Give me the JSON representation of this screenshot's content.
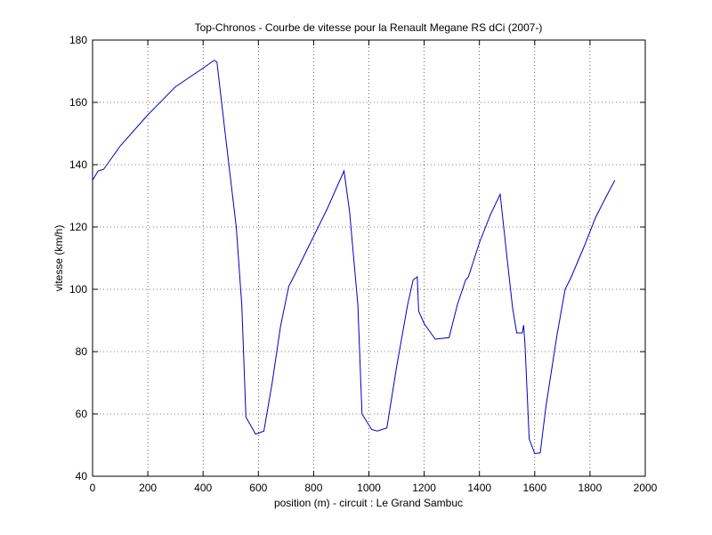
{
  "chart_data": {
    "type": "line",
    "title": "Top-Chronos - Courbe de vitesse pour la Renault Megane RS dCi (2007-)",
    "x_label": "position (m) - circuit : Le Grand Sambuc",
    "y_label": "vitesse (km/h)",
    "x": [
      0,
      20,
      40,
      100,
      200,
      300,
      400,
      440,
      450,
      480,
      520,
      540,
      555,
      590,
      620,
      650,
      680,
      710,
      725,
      800,
      850,
      910,
      930,
      960,
      975,
      1010,
      1030,
      1065,
      1100,
      1140,
      1160,
      1175,
      1180,
      1200,
      1240,
      1290,
      1320,
      1350,
      1360,
      1400,
      1440,
      1475,
      1500,
      1520,
      1535,
      1555,
      1560,
      1565,
      1580,
      1600,
      1620,
      1640,
      1680,
      1710,
      1730,
      1780,
      1820,
      1860,
      1890
    ],
    "values": [
      135,
      138,
      138.5,
      146,
      156,
      165,
      171,
      173.5,
      173,
      150,
      120,
      95,
      59,
      53.5,
      54.5,
      70,
      88,
      101,
      103.5,
      117,
      126,
      138,
      125,
      95,
      60,
      55,
      54.5,
      55.5,
      75,
      95,
      103,
      104,
      93,
      89,
      84,
      84.5,
      95,
      103,
      104,
      115,
      124,
      130.5,
      110,
      94,
      86,
      86,
      88.5,
      82,
      52,
      47.3,
      47.5,
      62,
      85,
      100,
      103.5,
      114,
      123,
      130,
      135
    ],
    "color": "#0000bf",
    "xlim": [
      0,
      2000
    ],
    "ylim": [
      40,
      180
    ],
    "xticks": [
      0,
      200,
      400,
      600,
      800,
      1000,
      1200,
      1400,
      1600,
      1800,
      2000
    ],
    "yticks": [
      40,
      60,
      80,
      100,
      120,
      140,
      160,
      180
    ],
    "grid": true
  }
}
